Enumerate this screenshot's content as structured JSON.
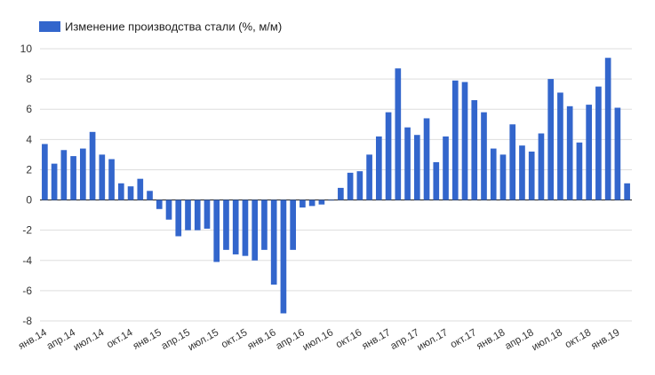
{
  "chart_data": {
    "type": "bar",
    "legend": {
      "label": "Изменение производства стали (%, м/м)",
      "position": "top-left"
    },
    "series": [
      {
        "name": "Изменение производства стали (%, м/м)",
        "color": "#3366cc",
        "values": [
          3.7,
          2.4,
          3.3,
          2.9,
          3.4,
          4.5,
          3.0,
          2.7,
          1.1,
          0.9,
          1.4,
          0.6,
          -0.6,
          -1.3,
          -2.4,
          -2.0,
          -2.0,
          -1.9,
          -4.1,
          -3.3,
          -3.6,
          -3.7,
          -4.0,
          -3.3,
          -5.6,
          -7.5,
          -3.3,
          -0.5,
          -0.4,
          -0.3,
          0.0,
          0.8,
          1.8,
          1.9,
          3.0,
          4.2,
          5.8,
          8.7,
          4.8,
          4.3,
          5.4,
          2.5,
          4.2,
          7.9,
          7.8,
          6.6,
          5.8,
          3.4,
          3.0,
          5.0,
          3.6,
          3.2,
          4.4,
          8.0,
          7.1,
          6.2,
          3.8,
          6.3,
          7.5,
          9.4,
          6.1,
          1.1
        ]
      }
    ],
    "x_tick_labels": [
      "янв.14",
      "апр.14",
      "июл.14",
      "окт.14",
      "янв.15",
      "апр.15",
      "июл.15",
      "окт.15",
      "янв.16",
      "апр.16",
      "июл.16",
      "окт.16",
      "янв.17",
      "апр.17",
      "июл.17",
      "окт.17",
      "янв.18",
      "апр.18",
      "июл.18",
      "окт.18",
      "янв.19"
    ],
    "y_ticks": [
      "10",
      "8",
      "6",
      "4",
      "2",
      "0",
      "-2",
      "-4",
      "-6",
      "-8"
    ],
    "ylim": [
      -8,
      10
    ],
    "grid": true
  }
}
